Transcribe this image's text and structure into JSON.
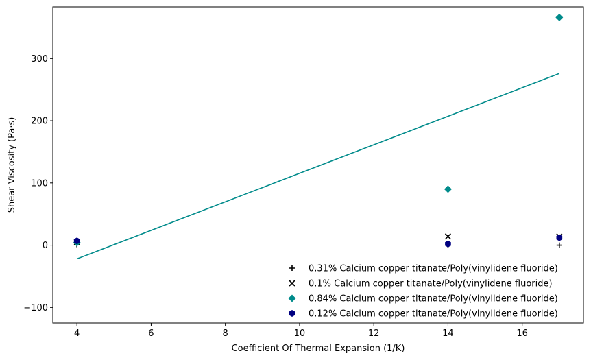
{
  "chart_data": {
    "type": "scatter",
    "title": "",
    "xlabel": "Coefficient Of Thermal Expansion (1/K)",
    "ylabel": "Shear Viscosity (Pa·s)",
    "xlim": [
      3.35,
      17.65
    ],
    "ylim": [
      -125,
      383
    ],
    "xticks": [
      4,
      6,
      8,
      10,
      12,
      14,
      16
    ],
    "yticks": [
      -100,
      0,
      100,
      200,
      300
    ],
    "grid": false,
    "legend_position": "lower-right",
    "series": [
      {
        "name": "0.31% Calcium copper titanate/Poly(vinylidene fluoride)",
        "marker": "plus",
        "color": "#000000",
        "points": [
          {
            "x": 4,
            "y": 1
          },
          {
            "x": 14,
            "y": 0
          },
          {
            "x": 17,
            "y": 0
          }
        ]
      },
      {
        "name": "0.1% Calcium copper titanate/Poly(vinylidene fluoride)",
        "marker": "x",
        "color": "#000000",
        "points": [
          {
            "x": 4,
            "y": 5
          },
          {
            "x": 14,
            "y": 14
          },
          {
            "x": 17,
            "y": 14
          }
        ]
      },
      {
        "name": "0.84% Calcium copper titanate/Poly(vinylidene fluoride)",
        "marker": "diamond",
        "color": "#008b8b",
        "points": [
          {
            "x": 4,
            "y": 4
          },
          {
            "x": 14,
            "y": 90
          },
          {
            "x": 17,
            "y": 366
          }
        ]
      },
      {
        "name": "0.12% Calcium copper titanate/Poly(vinylidene fluoride)",
        "marker": "hexagon",
        "color": "#000080",
        "points": [
          {
            "x": 4,
            "y": 7
          },
          {
            "x": 14,
            "y": 2
          },
          {
            "x": 17,
            "y": 12
          }
        ]
      }
    ],
    "trendline": {
      "color": "#008b8b",
      "points": [
        {
          "x": 4,
          "y": -22
        },
        {
          "x": 17,
          "y": 276
        }
      ]
    }
  }
}
